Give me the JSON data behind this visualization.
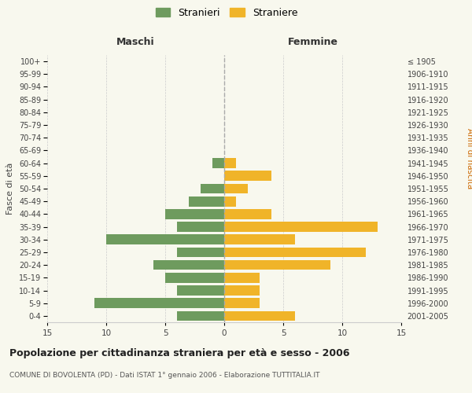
{
  "age_groups": [
    "0-4",
    "5-9",
    "10-14",
    "15-19",
    "20-24",
    "25-29",
    "30-34",
    "35-39",
    "40-44",
    "45-49",
    "50-54",
    "55-59",
    "60-64",
    "65-69",
    "70-74",
    "75-79",
    "80-84",
    "85-89",
    "90-94",
    "95-99",
    "100+"
  ],
  "birth_years": [
    "2001-2005",
    "1996-2000",
    "1991-1995",
    "1986-1990",
    "1981-1985",
    "1976-1980",
    "1971-1975",
    "1966-1970",
    "1961-1965",
    "1956-1960",
    "1951-1955",
    "1946-1950",
    "1941-1945",
    "1936-1940",
    "1931-1935",
    "1926-1930",
    "1921-1925",
    "1916-1920",
    "1911-1915",
    "1906-1910",
    "≤ 1905"
  ],
  "maschi": [
    4,
    11,
    4,
    5,
    6,
    4,
    10,
    4,
    5,
    3,
    2,
    0,
    1,
    0,
    0,
    0,
    0,
    0,
    0,
    0,
    0
  ],
  "femmine": [
    6,
    3,
    3,
    3,
    9,
    12,
    6,
    13,
    4,
    1,
    2,
    4,
    1,
    0,
    0,
    0,
    0,
    0,
    0,
    0,
    0
  ],
  "male_color": "#6e9b5e",
  "female_color": "#f0b429",
  "title": "Popolazione per cittadinanza straniera per età e sesso - 2006",
  "subtitle": "COMUNE DI BOVOLENTA (PD) - Dati ISTAT 1° gennaio 2006 - Elaborazione TUTTITALIA.IT",
  "xlabel_left": "Maschi",
  "xlabel_right": "Femmine",
  "ylabel_left": "Fasce di età",
  "ylabel_right": "Anni di nascita",
  "legend_male": "Stranieri",
  "legend_female": "Straniere",
  "xlim": 15,
  "background_color": "#f8f8ee",
  "grid_color": "#cccccc",
  "bar_edge_color": "none",
  "center_line_color": "#aaaaaa",
  "anni_nascita_color": "#cc6600"
}
